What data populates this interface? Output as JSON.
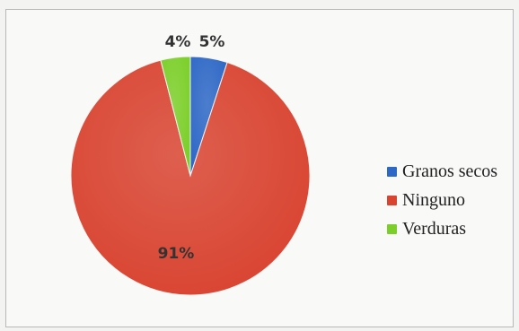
{
  "chart_data": {
    "type": "pie",
    "title": "",
    "legend_position": "right",
    "slices": [
      {
        "label": "Granos secos",
        "value": 5,
        "value_label": "5%",
        "color": "#2e68c6"
      },
      {
        "label": "Ninguno",
        "value": 91,
        "value_label": "91%",
        "color": "#d94431"
      },
      {
        "label": "Verduras",
        "value": 4,
        "value_label": "4%",
        "color": "#7ccf2a"
      }
    ]
  }
}
